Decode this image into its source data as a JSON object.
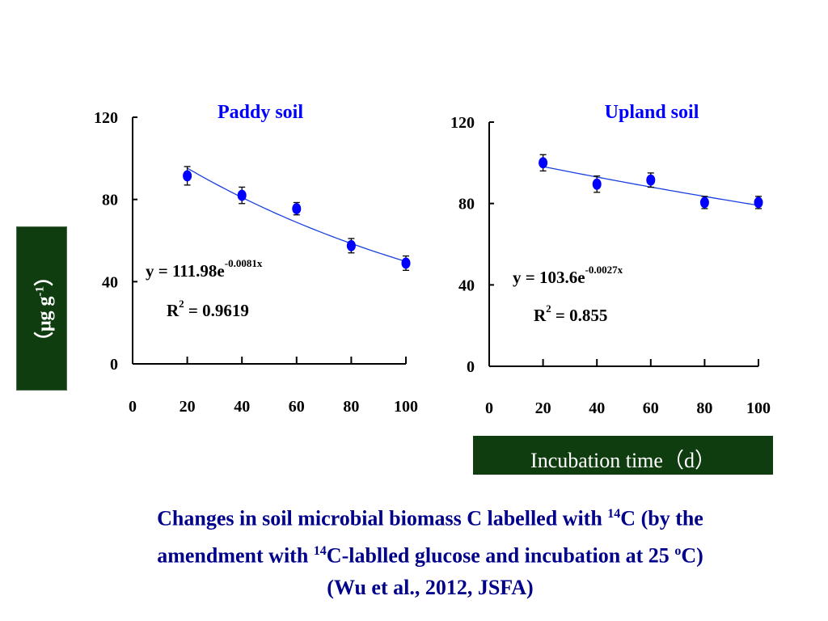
{
  "chart_data": [
    {
      "type": "scatter",
      "title": "Paddy soil",
      "x": [
        20,
        40,
        60,
        80,
        100
      ],
      "y": [
        91.5,
        82,
        75.5,
        57.5,
        49
      ],
      "error": [
        4.5,
        4,
        3,
        3.5,
        3.5
      ],
      "xlim": [
        0,
        100
      ],
      "ylim": [
        0,
        120
      ],
      "xticks": [
        "0",
        "20",
        "40",
        "60",
        "80",
        "100"
      ],
      "yticks": [
        "0",
        "40",
        "80",
        "120"
      ],
      "fit": {
        "type": "exponential",
        "a": 111.98,
        "b": -0.0081,
        "x_range": [
          20,
          100
        ]
      },
      "equation": {
        "lhs": "y = 111.98e",
        "exponent": "-0.0081x",
        "r2_prefix": "R",
        "r2_sup": "2",
        "r2_rest": " = 0.9619"
      },
      "marker_color": "#0000ff",
      "line_color": "#1a3fe0"
    },
    {
      "type": "scatter",
      "title": "Upland soil",
      "x": [
        20,
        40,
        60,
        80,
        100
      ],
      "y": [
        100,
        89.5,
        91.5,
        80.5,
        80.5
      ],
      "error": [
        4,
        4,
        3.5,
        3,
        3
      ],
      "xlim": [
        0,
        100
      ],
      "ylim": [
        0,
        120
      ],
      "xticks": [
        "0",
        "20",
        "40",
        "60",
        "80",
        "100"
      ],
      "yticks": [
        "0",
        "40",
        "80",
        "120"
      ],
      "fit": {
        "type": "exponential",
        "a": 103.6,
        "b": -0.0027,
        "x_range": [
          20,
          100
        ]
      },
      "equation": {
        "lhs": "y = 103.6e",
        "exponent": "-0.0027x",
        "r2_prefix": "R",
        "r2_sup": "2",
        "r2_rest": " = 0.855"
      },
      "marker_color": "#0000ff",
      "line_color": "#1a3fe0"
    }
  ],
  "ylabel": {
    "prefix": "（μg g",
    "sup": "-1",
    "suffix": "）"
  },
  "xlabel": "Incubation time（d）",
  "caption": {
    "line1_a": "Changes in soil microbial biomass C labelled with ",
    "line1_sup": "14",
    "line1_b": "C (by the",
    "line2_a": "amendment with ",
    "line2_sup": "14",
    "line2_b": "C-lablled glucose and incubation at 25 ",
    "line2_sup2": "o",
    "line2_c": "C)",
    "line3": "(Wu et al., 2012, JSFA)"
  }
}
